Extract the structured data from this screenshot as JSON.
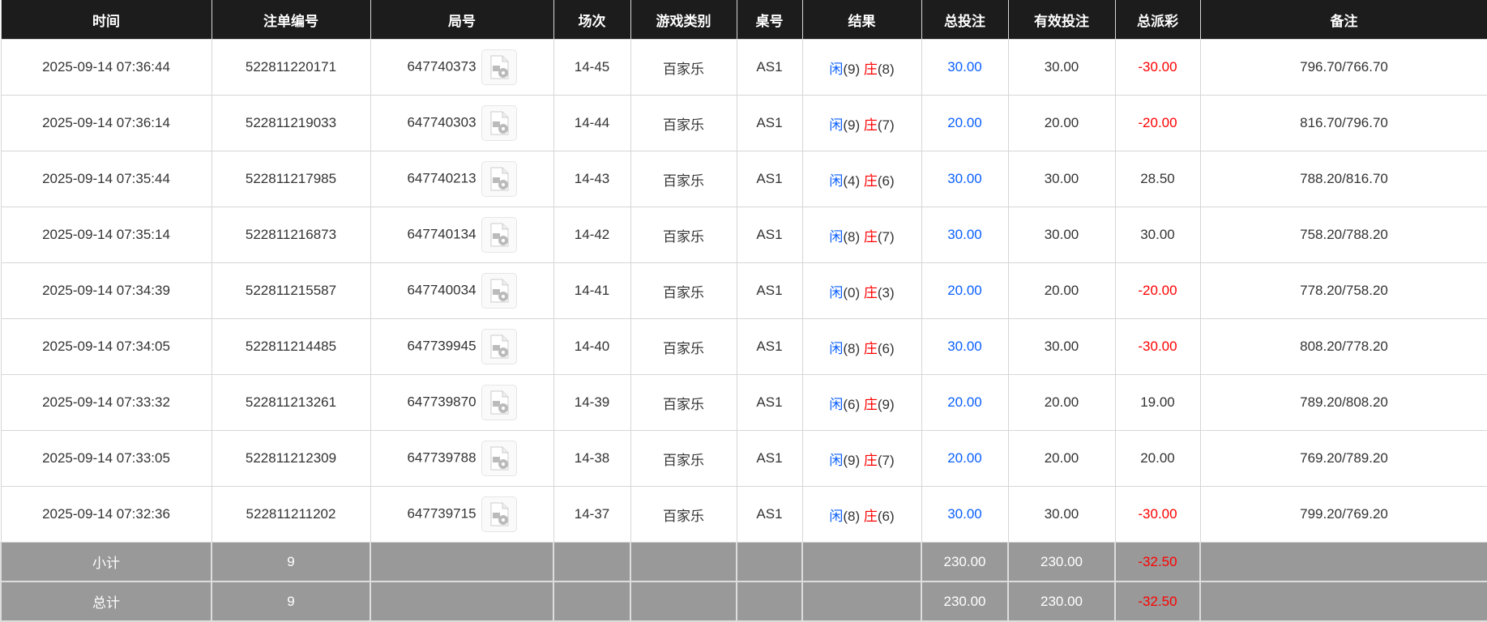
{
  "headers": [
    "时间",
    "注单编号",
    "局号",
    "场次",
    "游戏类别",
    "桌号",
    "结果",
    "总投注",
    "有效投注",
    "总派彩",
    "备注"
  ],
  "player_label": "闲",
  "banker_label": "庄",
  "colors": {
    "header_bg": "#1c1c1c",
    "player": "#0a5fff",
    "banker": "#ff0000",
    "negative": "#ff0000",
    "footer_bg": "#999999"
  },
  "icon": "video-file-icon",
  "rows": [
    {
      "time": "2025-09-14 07:36:44",
      "order": "522811220171",
      "round": "647740373",
      "session": "14-45",
      "game": "百家乐",
      "table": "AS1",
      "p": "(9)",
      "b": "(8)",
      "bet": "30.00",
      "valid": "30.00",
      "payout": "-30.00",
      "note": "796.70/766.70"
    },
    {
      "time": "2025-09-14 07:36:14",
      "order": "522811219033",
      "round": "647740303",
      "session": "14-44",
      "game": "百家乐",
      "table": "AS1",
      "p": "(9)",
      "b": "(7)",
      "bet": "20.00",
      "valid": "20.00",
      "payout": "-20.00",
      "note": "816.70/796.70"
    },
    {
      "time": "2025-09-14 07:35:44",
      "order": "522811217985",
      "round": "647740213",
      "session": "14-43",
      "game": "百家乐",
      "table": "AS1",
      "p": "(4)",
      "b": "(6)",
      "bet": "30.00",
      "valid": "30.00",
      "payout": "28.50",
      "note": "788.20/816.70"
    },
    {
      "time": "2025-09-14 07:35:14",
      "order": "522811216873",
      "round": "647740134",
      "session": "14-42",
      "game": "百家乐",
      "table": "AS1",
      "p": "(8)",
      "b": "(7)",
      "bet": "30.00",
      "valid": "30.00",
      "payout": "30.00",
      "note": "758.20/788.20"
    },
    {
      "time": "2025-09-14 07:34:39",
      "order": "522811215587",
      "round": "647740034",
      "session": "14-41",
      "game": "百家乐",
      "table": "AS1",
      "p": "(0)",
      "b": "(3)",
      "bet": "20.00",
      "valid": "20.00",
      "payout": "-20.00",
      "note": "778.20/758.20"
    },
    {
      "time": "2025-09-14 07:34:05",
      "order": "522811214485",
      "round": "647739945",
      "session": "14-40",
      "game": "百家乐",
      "table": "AS1",
      "p": "(8)",
      "b": "(6)",
      "bet": "30.00",
      "valid": "30.00",
      "payout": "-30.00",
      "note": "808.20/778.20"
    },
    {
      "time": "2025-09-14 07:33:32",
      "order": "522811213261",
      "round": "647739870",
      "session": "14-39",
      "game": "百家乐",
      "table": "AS1",
      "p": "(6)",
      "b": "(9)",
      "bet": "20.00",
      "valid": "20.00",
      "payout": "19.00",
      "note": "789.20/808.20"
    },
    {
      "time": "2025-09-14 07:33:05",
      "order": "522811212309",
      "round": "647739788",
      "session": "14-38",
      "game": "百家乐",
      "table": "AS1",
      "p": "(9)",
      "b": "(7)",
      "bet": "20.00",
      "valid": "20.00",
      "payout": "20.00",
      "note": "769.20/789.20"
    },
    {
      "time": "2025-09-14 07:32:36",
      "order": "522811211202",
      "round": "647739715",
      "session": "14-37",
      "game": "百家乐",
      "table": "AS1",
      "p": "(8)",
      "b": "(6)",
      "bet": "30.00",
      "valid": "30.00",
      "payout": "-30.00",
      "note": "799.20/769.20"
    }
  ],
  "summary": [
    {
      "label": "小计",
      "count": "9",
      "bet": "230.00",
      "valid": "230.00",
      "payout": "-32.50"
    },
    {
      "label": "总计",
      "count": "9",
      "bet": "230.00",
      "valid": "230.00",
      "payout": "-32.50"
    }
  ]
}
